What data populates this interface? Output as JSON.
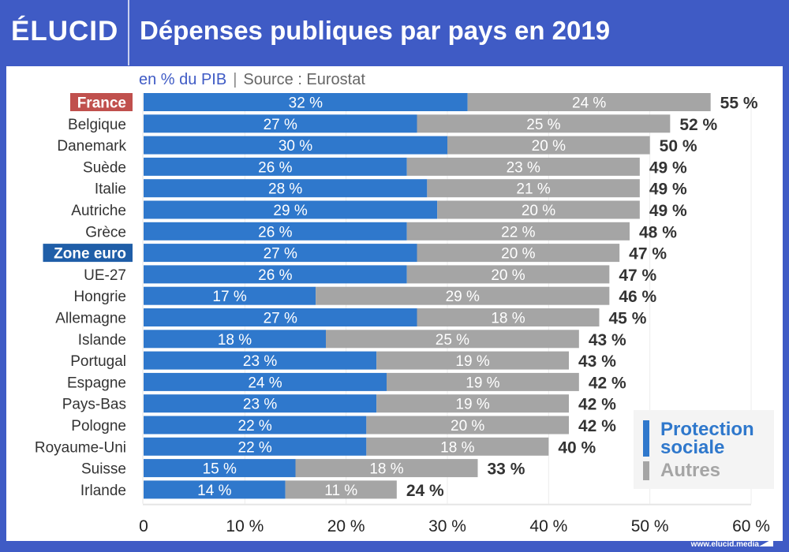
{
  "header": {
    "logo": "ÉLUCID",
    "title": "Dépenses publiques par pays en 2019"
  },
  "subtitle": {
    "unit": "en % du PIB",
    "separator": "|",
    "source": "Source : Eurostat"
  },
  "legend": {
    "items": [
      {
        "label_line1": "Protection",
        "label_line2": "sociale",
        "color": "#2f78cc"
      },
      {
        "label_line1": "Autres",
        "label_line2": "",
        "color": "#a5a5a5"
      }
    ]
  },
  "footer": {
    "url": "www.elucid.media"
  },
  "colors": {
    "brand": "#3f5bc5",
    "protection_sociale": "#2f78cc",
    "autres": "#a5a5a5",
    "france_highlight": "#c0504d",
    "zone_euro_highlight": "#1f5ea8",
    "total_label": "#333333",
    "axis_label": "#222222"
  },
  "chart_data": {
    "type": "bar",
    "orientation": "horizontal",
    "stacked": true,
    "title": "Dépenses publiques par pays en 2019",
    "subtitle": "en % du PIB | Source : Eurostat",
    "xlabel": "",
    "ylabel": "",
    "xlim": [
      0,
      60
    ],
    "x_ticks": [
      0,
      10,
      20,
      30,
      40,
      50,
      60
    ],
    "x_tick_labels": [
      "0",
      "10 %",
      "20 %",
      "30 %",
      "40 %",
      "50 %",
      "60 %"
    ],
    "grid": "vertical",
    "legend_position": "bottom-right",
    "value_suffix": " %",
    "categories": [
      "France",
      "Belgique",
      "Danemark",
      "Suède",
      "Italie",
      "Autriche",
      "Grèce",
      "Zone euro",
      "UE-27",
      "Hongrie",
      "Allemagne",
      "Islande",
      "Portugal",
      "Espagne",
      "Pays-Bas",
      "Pologne",
      "Royaume-Uni",
      "Suisse",
      "Irlande"
    ],
    "highlighted": {
      "France": "#c0504d",
      "Zone euro": "#1f5ea8"
    },
    "series": [
      {
        "name": "Protection sociale",
        "color": "#2f78cc",
        "values": [
          32,
          27,
          30,
          26,
          28,
          29,
          26,
          27,
          26,
          17,
          27,
          18,
          23,
          24,
          23,
          22,
          22,
          15,
          14
        ]
      },
      {
        "name": "Autres",
        "color": "#a5a5a5",
        "values": [
          24,
          25,
          20,
          23,
          21,
          20,
          22,
          20,
          20,
          29,
          18,
          25,
          19,
          19,
          19,
          20,
          18,
          18,
          11
        ]
      }
    ],
    "totals": [
      55,
      52,
      50,
      49,
      49,
      49,
      48,
      47,
      47,
      46,
      45,
      43,
      43,
      42,
      42,
      42,
      40,
      33,
      24
    ]
  }
}
